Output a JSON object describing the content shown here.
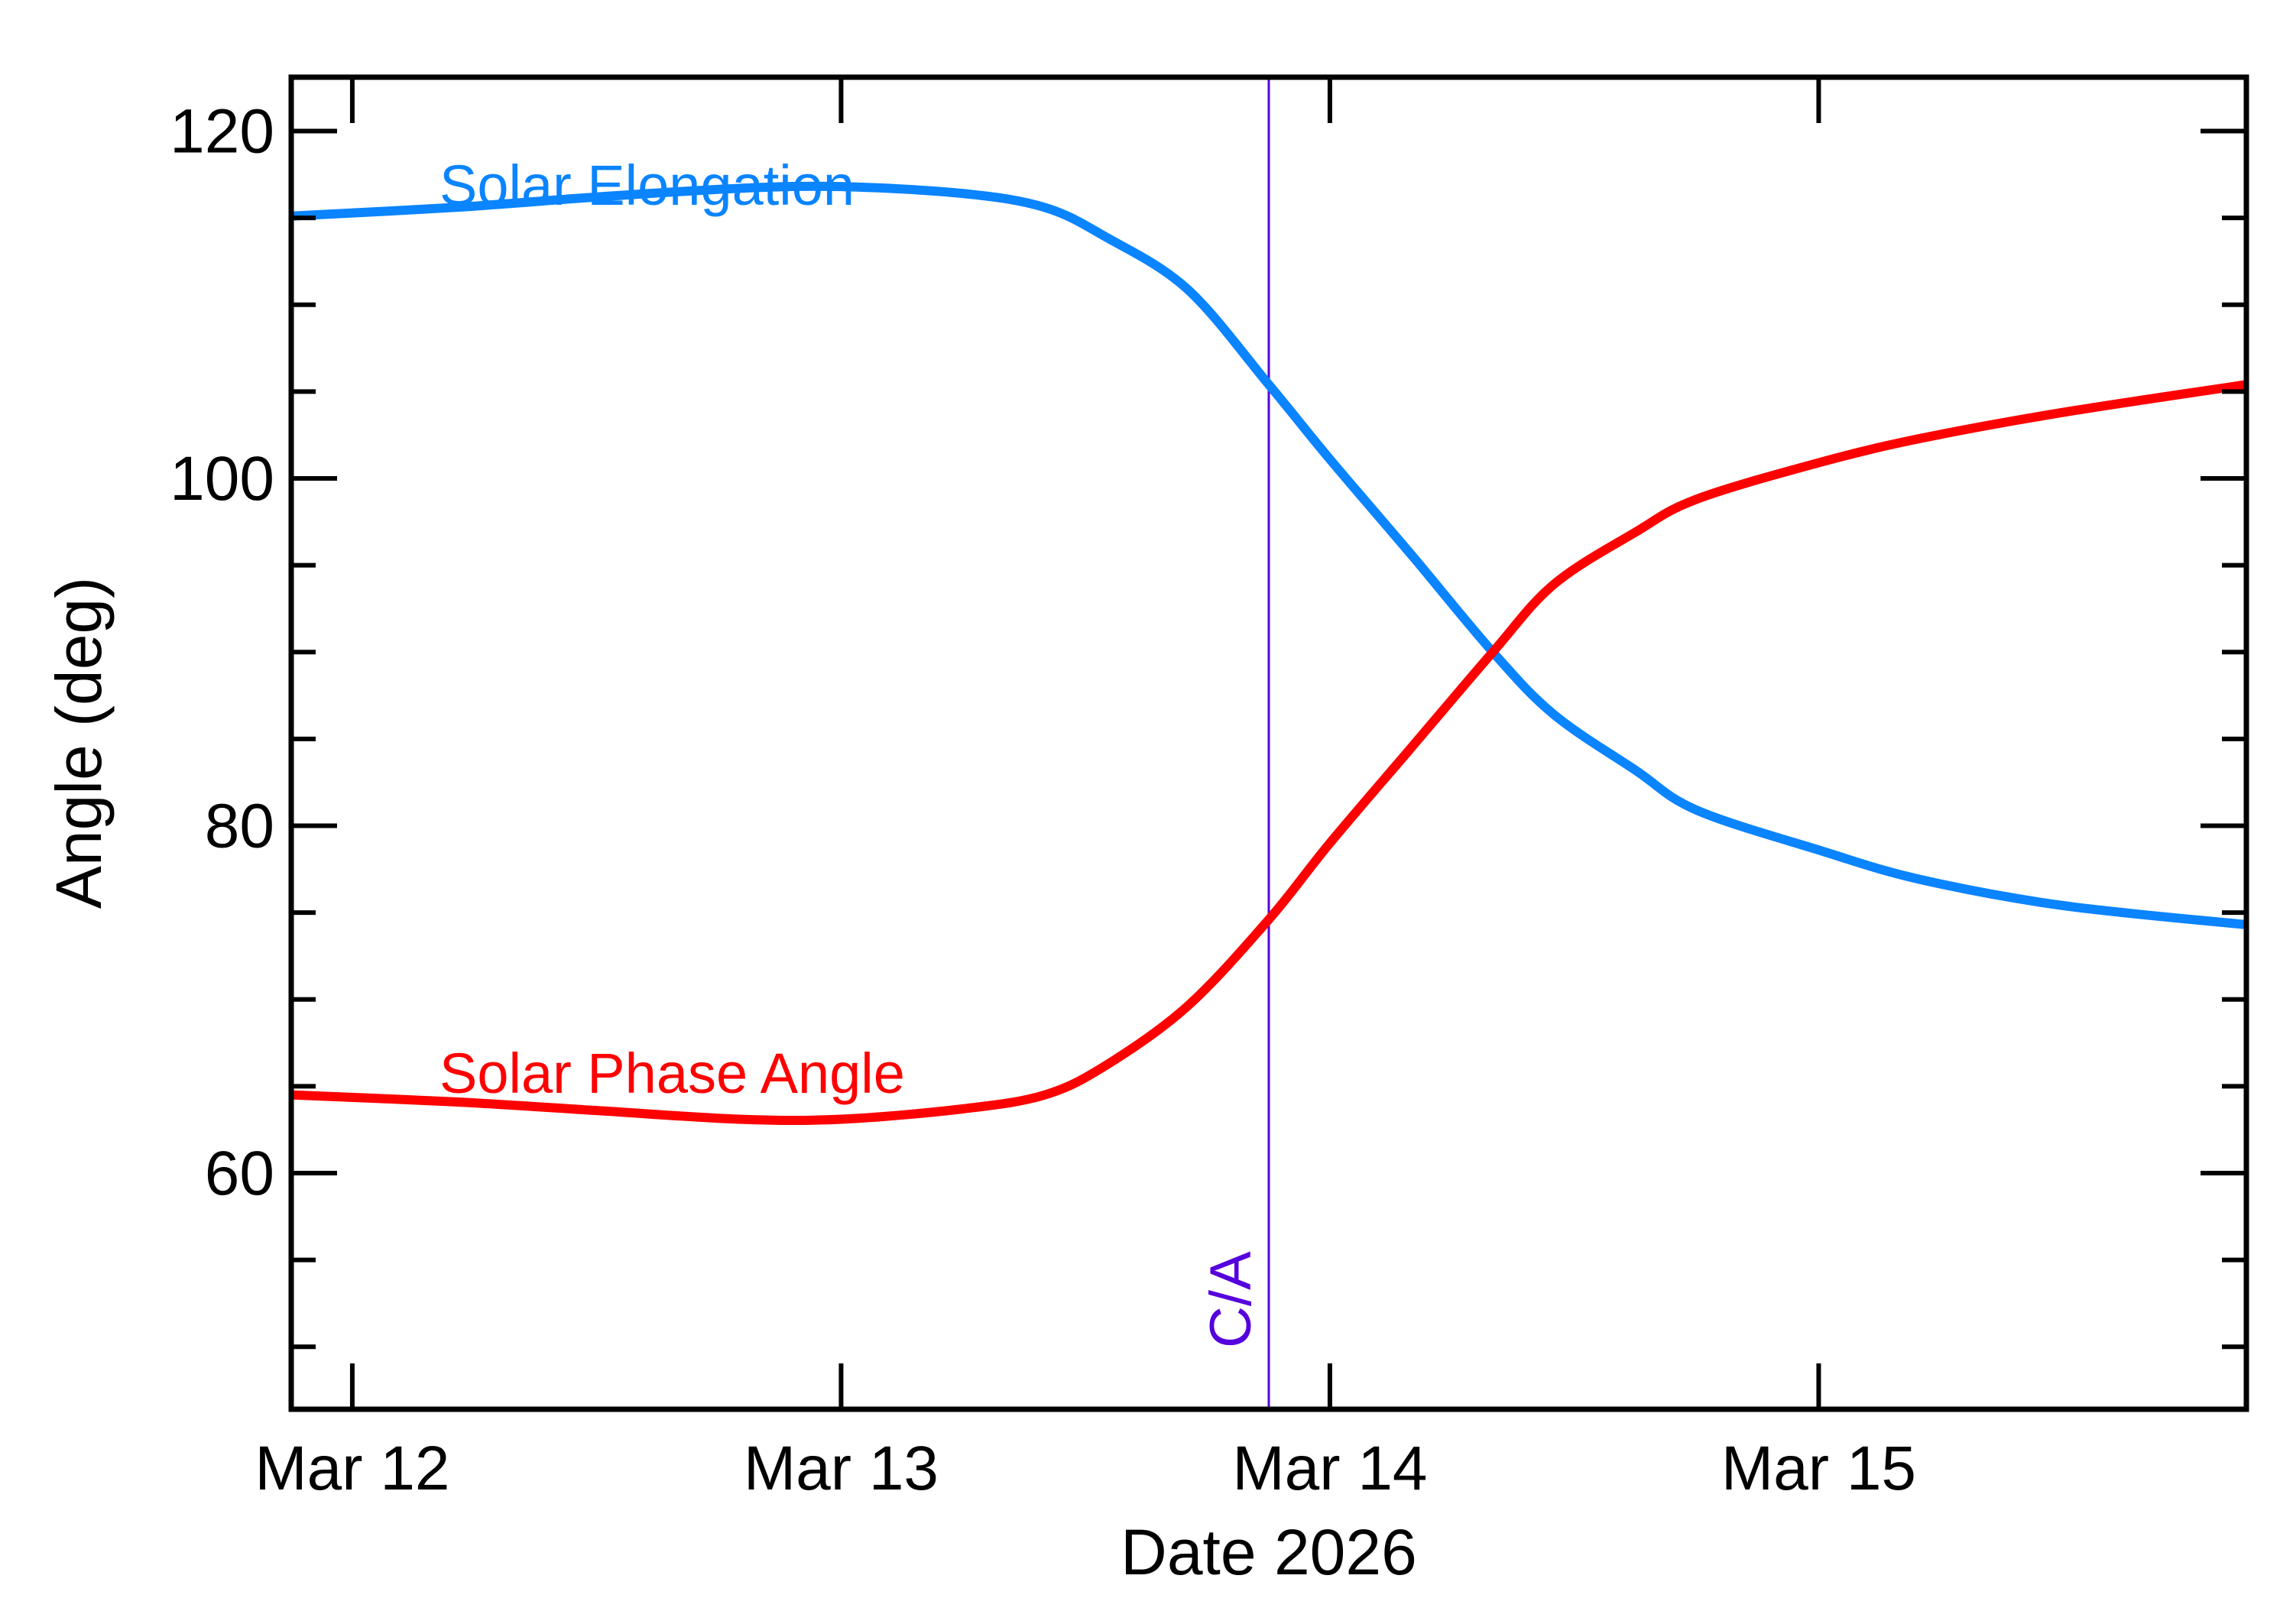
{
  "chart_data": {
    "type": "line",
    "title": "",
    "xlabel": "Date 2026",
    "ylabel": "Angle (deg)",
    "xlim": [
      "2026-03-11T21:00",
      "2026-03-15T21:00"
    ],
    "ylim": [
      46.4,
      123.1
    ],
    "x_ticks": [
      {
        "date": "2026-03-12T00:00",
        "label": "Mar 12"
      },
      {
        "date": "2026-03-13T00:00",
        "label": "Mar 13"
      },
      {
        "date": "2026-03-14T00:00",
        "label": "Mar 14"
      },
      {
        "date": "2026-03-15T00:00",
        "label": "Mar 15"
      }
    ],
    "y_ticks": [
      60,
      80,
      100,
      120
    ],
    "y_minor_step": 5,
    "grid": false,
    "x": [
      "2026-03-11T21:00",
      "2026-03-12T05:00",
      "2026-03-12T12:00",
      "2026-03-12T19:00",
      "2026-03-13T00:00",
      "2026-03-13T06:00",
      "2026-03-13T10:00",
      "2026-03-13T13:00",
      "2026-03-13T17:00",
      "2026-03-13T21:00",
      "2026-03-14T00:00",
      "2026-03-14T04:00",
      "2026-03-14T08:00",
      "2026-03-14T11:00",
      "2026-03-14T15:00",
      "2026-03-14T18:00",
      "2026-03-15T00:00",
      "2026-03-15T05:00",
      "2026-03-15T12:00",
      "2026-03-15T21:00"
    ],
    "series": [
      {
        "name": "Solar Elongation",
        "color": "#0a84ff",
        "values": [
          115.1,
          115.6,
          116.2,
          116.7,
          116.8,
          116.4,
          115.6,
          113.9,
          110.9,
          105.4,
          101.1,
          95.6,
          90.0,
          86.4,
          83.2,
          80.9,
          78.6,
          76.9,
          75.4,
          74.3
        ]
      },
      {
        "name": "Solar Phase Angle",
        "color": "#ff0000",
        "values": [
          64.5,
          64.1,
          63.6,
          63.1,
          63.1,
          63.7,
          64.5,
          66.2,
          69.6,
          74.6,
          79.0,
          84.5,
          90.0,
          93.9,
          96.9,
          98.8,
          100.9,
          102.3,
          103.8,
          105.4
        ]
      }
    ],
    "annotations": [
      {
        "label": "C/A",
        "date": "2026-03-13T21:00",
        "color": "#5500dd"
      }
    ]
  }
}
